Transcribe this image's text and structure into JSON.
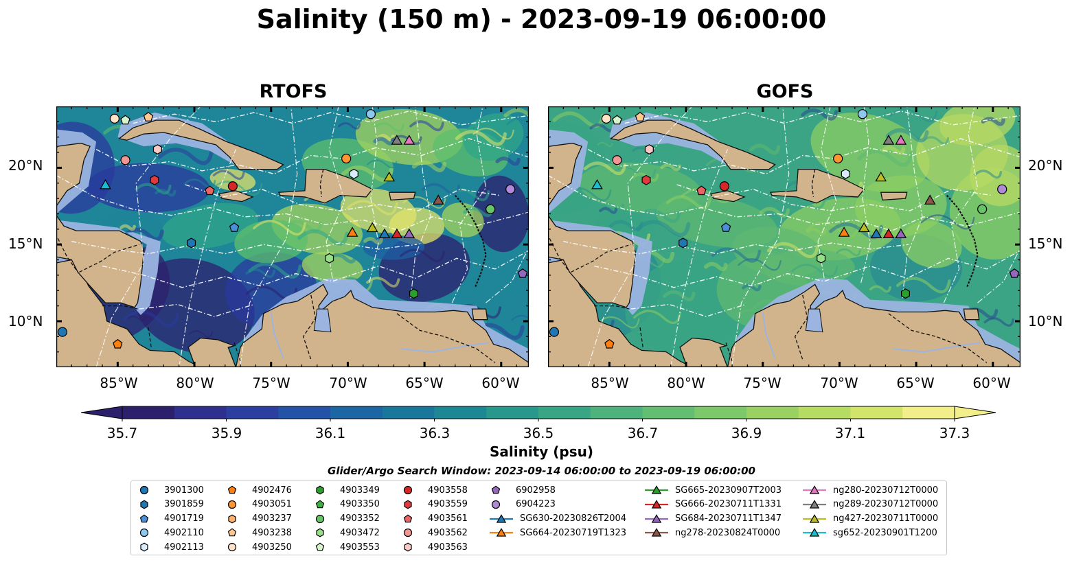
{
  "title": "Salinity (150 m) - 2023-09-19 06:00:00",
  "panels": [
    {
      "title": "RTOFS",
      "palette": [
        "#2e1f6e",
        "#2a3a9c",
        "#1f5fa6",
        "#1f8598",
        "#2fa588",
        "#5cbf6c",
        "#a6d45e",
        "#e2e36a"
      ]
    },
    {
      "title": "GOFS",
      "palette": [
        "#274a92",
        "#226f98",
        "#2a8c92",
        "#3aa484",
        "#5fb871",
        "#8ccd63",
        "#b7da63",
        "#d6e369"
      ]
    }
  ],
  "lat_labels": [
    "20°N",
    "15°N",
    "10°N"
  ],
  "lon_labels": [
    "85°W",
    "80°W",
    "75°W",
    "70°W",
    "65°W",
    "60°W"
  ],
  "colorbar": {
    "ticks": [
      "35.7",
      "35.9",
      "36.1",
      "36.3",
      "36.5",
      "36.7",
      "36.9",
      "37.1",
      "37.3"
    ],
    "label": "Salinity (psu)",
    "colors": [
      "#2c1f6b",
      "#2e2f8f",
      "#2a3fa0",
      "#2253a6",
      "#1b66a3",
      "#1a779c",
      "#1d8894",
      "#28988c",
      "#38a584",
      "#4db27b",
      "#63be71",
      "#7cc969",
      "#99d263",
      "#b6dc63",
      "#d3e46b",
      "#f2ee8a"
    ]
  },
  "search_window": "Glider/Argo Search Window: 2023-09-14 06:00:00 to 2023-09-19 06:00:00",
  "legend": {
    "columns": [
      [
        {
          "label": "3901300",
          "marker": "circle",
          "color": "#1f77b4"
        },
        {
          "label": "3901859",
          "marker": "hexagon",
          "color": "#1f77b4"
        },
        {
          "label": "4901719",
          "marker": "pentagon",
          "color": "#4a90d9"
        },
        {
          "label": "4902110",
          "marker": "circle",
          "color": "#8ec8ef"
        },
        {
          "label": "4902113",
          "marker": "hexagon",
          "color": "#d8ecfb"
        }
      ],
      [
        {
          "label": "4902476",
          "marker": "pentagon",
          "color": "#ff7f0e"
        },
        {
          "label": "4903051",
          "marker": "circle",
          "color": "#ff9433"
        },
        {
          "label": "4903237",
          "marker": "hexagon",
          "color": "#ffb26b"
        },
        {
          "label": "4903238",
          "marker": "pentagon",
          "color": "#ffc890"
        },
        {
          "label": "4903250",
          "marker": "circle",
          "color": "#ffe3c8"
        }
      ],
      [
        {
          "label": "4903349",
          "marker": "hexagon",
          "color": "#2ca02c"
        },
        {
          "label": "4903350",
          "marker": "pentagon",
          "color": "#3cb043"
        },
        {
          "label": "4903352",
          "marker": "circle",
          "color": "#66c466"
        },
        {
          "label": "4903472",
          "marker": "hexagon",
          "color": "#98df8a"
        },
        {
          "label": "4903553",
          "marker": "pentagon",
          "color": "#d6f5cf"
        }
      ],
      [
        {
          "label": "4903558",
          "marker": "circle",
          "color": "#d62728"
        },
        {
          "label": "4903559",
          "marker": "hexagon",
          "color": "#e03a3e"
        },
        {
          "label": "4903561",
          "marker": "pentagon",
          "color": "#ea6466"
        },
        {
          "label": "4903562",
          "marker": "circle",
          "color": "#f29693"
        },
        {
          "label": "4903563",
          "marker": "hexagon",
          "color": "#fbc9c6"
        }
      ],
      [
        {
          "label": "6902958",
          "marker": "pentagon",
          "color": "#9467bd"
        },
        {
          "label": "6904223",
          "marker": "circle",
          "color": "#b08ad6"
        },
        {
          "label": "SG630-20230826T2004",
          "marker": "triangle-line",
          "color": "#1f77b4"
        },
        {
          "label": "SG664-20230719T1323",
          "marker": "triangle-line",
          "color": "#ff7f0e"
        }
      ],
      [
        {
          "label": "SG665-20230907T2003",
          "marker": "triangle-line",
          "color": "#2ca02c"
        },
        {
          "label": "SG666-20230711T1331",
          "marker": "triangle-line",
          "color": "#d62728"
        },
        {
          "label": "SG684-20230711T1347",
          "marker": "triangle-line",
          "color": "#9467bd"
        },
        {
          "label": "ng278-20230824T0000",
          "marker": "triangle-line",
          "color": "#8c564b"
        }
      ],
      [
        {
          "label": "ng280-20230712T0000",
          "marker": "triangle-line",
          "color": "#e377c2"
        },
        {
          "label": "ng289-20230712T0000",
          "marker": "triangle-line",
          "color": "#7f7f7f"
        },
        {
          "label": "ng427-20230711T0000",
          "marker": "triangle-line",
          "color": "#bcbd22"
        },
        {
          "label": "sg652-20230901T1200",
          "marker": "triangle-line",
          "color": "#17becf"
        }
      ]
    ]
  },
  "map_markers": [
    {
      "lon": -85.2,
      "lat": 23.2,
      "marker": "circle",
      "color": "#ffe3c8"
    },
    {
      "lon": -84.5,
      "lat": 23.1,
      "marker": "pentagon",
      "color": "#d6f5cf"
    },
    {
      "lon": -83.0,
      "lat": 23.3,
      "marker": "pentagon",
      "color": "#ffc890"
    },
    {
      "lon": -82.4,
      "lat": 21.2,
      "marker": "hexagon",
      "color": "#fbc9c6"
    },
    {
      "lon": -84.5,
      "lat": 20.5,
      "marker": "circle",
      "color": "#f29693"
    },
    {
      "lon": -82.6,
      "lat": 19.2,
      "marker": "hexagon",
      "color": "#e03a3e"
    },
    {
      "lon": -85.8,
      "lat": 18.9,
      "marker": "triangle",
      "color": "#17becf"
    },
    {
      "lon": -79.0,
      "lat": 18.5,
      "marker": "pentagon",
      "color": "#ea6466"
    },
    {
      "lon": -77.5,
      "lat": 18.8,
      "marker": "circle",
      "color": "#d62728"
    },
    {
      "lon": -77.4,
      "lat": 16.1,
      "marker": "pentagon",
      "color": "#4a90d9"
    },
    {
      "lon": -80.2,
      "lat": 15.1,
      "marker": "hexagon",
      "color": "#1f77b4"
    },
    {
      "lon": -70.1,
      "lat": 20.6,
      "marker": "circle",
      "color": "#ff9433"
    },
    {
      "lon": -69.6,
      "lat": 19.6,
      "marker": "hexagon",
      "color": "#d8ecfb"
    },
    {
      "lon": -68.5,
      "lat": 23.5,
      "marker": "circle",
      "color": "#8ec8ef"
    },
    {
      "lon": -66.8,
      "lat": 21.8,
      "marker": "triangle",
      "color": "#7f7f7f"
    },
    {
      "lon": -66.0,
      "lat": 21.8,
      "marker": "triangle",
      "color": "#e377c2"
    },
    {
      "lon": -67.3,
      "lat": 19.4,
      "marker": "triangle",
      "color": "#bcbd22"
    },
    {
      "lon": -64.1,
      "lat": 17.9,
      "marker": "triangle",
      "color": "#8c564b"
    },
    {
      "lon": -60.7,
      "lat": 17.3,
      "marker": "circle",
      "color": "#66c466"
    },
    {
      "lon": -59.4,
      "lat": 18.6,
      "marker": "circle",
      "color": "#b08ad6"
    },
    {
      "lon": -69.7,
      "lat": 15.8,
      "marker": "triangle",
      "color": "#ff7f0e"
    },
    {
      "lon": -68.4,
      "lat": 16.1,
      "marker": "triangle",
      "color": "#bcbd22"
    },
    {
      "lon": -67.6,
      "lat": 15.7,
      "marker": "triangle",
      "color": "#1f77b4"
    },
    {
      "lon": -66.8,
      "lat": 15.7,
      "marker": "triangle",
      "color": "#d62728"
    },
    {
      "lon": -66.0,
      "lat": 15.7,
      "marker": "triangle",
      "color": "#9467bd"
    },
    {
      "lon": -71.2,
      "lat": 14.1,
      "marker": "hexagon",
      "color": "#98df8a"
    },
    {
      "lon": -65.7,
      "lat": 11.8,
      "marker": "hexagon",
      "color": "#2ca02c"
    },
    {
      "lon": -58.6,
      "lat": 13.1,
      "marker": "pentagon",
      "color": "#9467bd"
    },
    {
      "lon": -88.6,
      "lat": 9.3,
      "marker": "circle",
      "color": "#1f77b4"
    },
    {
      "lon": -85.0,
      "lat": 8.5,
      "marker": "pentagon",
      "color": "#ff7f0e"
    }
  ]
}
